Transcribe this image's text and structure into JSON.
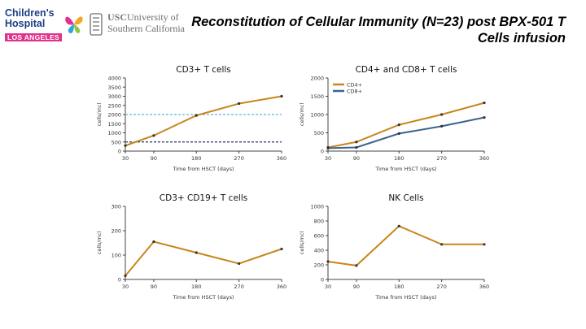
{
  "header": {
    "chla_logo": {
      "line1": "Children's",
      "line2": "Hospital",
      "line3": "LOS ANGELES"
    },
    "usc_logo": {
      "brand": "USC",
      "line1": "University of",
      "line2": "Southern California"
    },
    "title": "Reconstitution of Cellular Immunity (N=23) post BPX-501 T Cells infusion"
  },
  "colors": {
    "orange": "#c8861a",
    "blue": "#3a6492",
    "light_blue_dash": "#5ab4e0",
    "navy_dash": "#26356b"
  },
  "chart_data": [
    {
      "type": "line",
      "title": "CD3+ T cells",
      "xlabel": "Time from HSCT (days)",
      "ylabel": "cells/mcl",
      "x": [
        30,
        90,
        180,
        270,
        360
      ],
      "xlim": [
        30,
        360
      ],
      "ylim": [
        0,
        4000
      ],
      "yticks": [
        0,
        500,
        1000,
        1500,
        2000,
        2500,
        3000,
        3500,
        4000
      ],
      "series": [
        {
          "values": [
            300,
            850,
            1950,
            2600,
            3000
          ],
          "color": "#c8861a"
        }
      ],
      "reference_lines": [
        {
          "y": 2000,
          "color": "#5ab4e0",
          "style": "dashed"
        },
        {
          "y": 500,
          "color": "#26356b",
          "style": "dashed"
        }
      ]
    },
    {
      "type": "line",
      "title": "CD4+ and CD8+ T cells",
      "xlabel": "Time from HSCT (days)",
      "ylabel": "cells/mcl",
      "x": [
        30,
        90,
        180,
        270,
        360
      ],
      "xlim": [
        30,
        360
      ],
      "ylim": [
        0,
        2000
      ],
      "yticks": [
        0,
        500,
        1000,
        1500,
        2000
      ],
      "legend": "top-left",
      "series": [
        {
          "name": "CD4+",
          "values": [
            100,
            250,
            720,
            1000,
            1320
          ],
          "color": "#c8861a"
        },
        {
          "name": "CD8+",
          "values": [
            80,
            100,
            480,
            680,
            920
          ],
          "color": "#3a6492"
        }
      ]
    },
    {
      "type": "line",
      "title": "CD3+ CD19+ T cells",
      "xlabel": "Time from HSCT (days)",
      "ylabel": "cells/mcl",
      "x": [
        30,
        90,
        180,
        270,
        360
      ],
      "xlim": [
        30,
        360
      ],
      "ylim": [
        0,
        300
      ],
      "yticks": [
        0,
        100,
        200,
        300
      ],
      "series": [
        {
          "values": [
            15,
            155,
            110,
            65,
            125
          ],
          "color": "#c8861a"
        }
      ]
    },
    {
      "type": "line",
      "title": "NK Cells",
      "xlabel": "Time from HSCT (days)",
      "ylabel": "cells/mcl",
      "x": [
        30,
        90,
        180,
        270,
        360
      ],
      "xlim": [
        30,
        360
      ],
      "ylim": [
        0,
        1000
      ],
      "yticks": [
        0,
        200,
        400,
        600,
        800,
        1000
      ],
      "series": [
        {
          "values": [
            245,
            190,
            730,
            480,
            480
          ],
          "color": "#c8861a"
        }
      ]
    }
  ]
}
